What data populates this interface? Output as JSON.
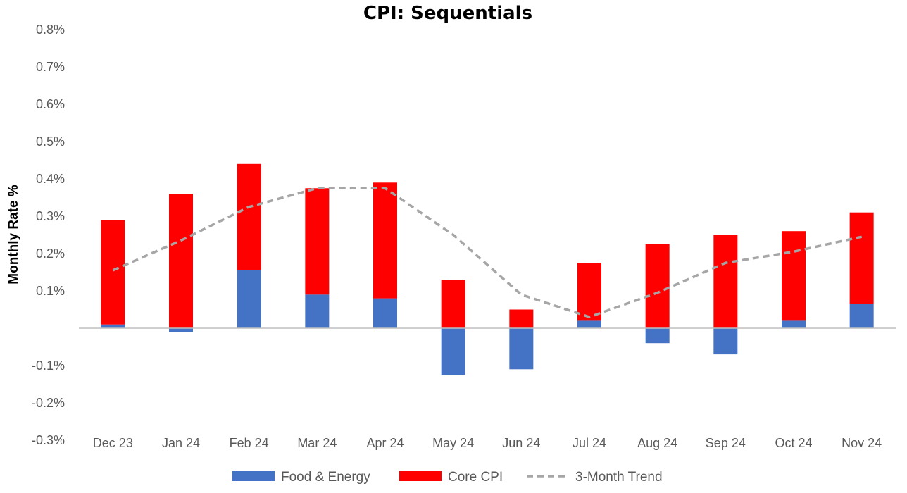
{
  "chart_data": {
    "type": "bar",
    "stacked": true,
    "title": "CPI: Sequentials",
    "xlabel": "",
    "ylabel": "Monthly Rate %",
    "ylim": [
      -0.3,
      0.8
    ],
    "yticks": [
      -0.3,
      -0.2,
      -0.1,
      0.1,
      0.2,
      0.3,
      0.4,
      0.5,
      0.6,
      0.7,
      0.8
    ],
    "ytick_labels": [
      "-0.3%",
      "-0.2%",
      "-0.1%",
      "0.1%",
      "0.2%",
      "0.3%",
      "0.4%",
      "0.5%",
      "0.6%",
      "0.7%",
      "0.8%"
    ],
    "categories": [
      "Dec 23",
      "Jan 24",
      "Feb 24",
      "Mar 24",
      "Apr 24",
      "May 24",
      "Jun 24",
      "Jul 24",
      "Aug 24",
      "Sep 24",
      "Oct 24",
      "Nov 24"
    ],
    "series": [
      {
        "name": "Food & Energy",
        "kind": "bar",
        "color": "#4472C4",
        "values": [
          0.01,
          -0.01,
          0.155,
          0.09,
          0.08,
          -0.125,
          -0.11,
          0.02,
          -0.04,
          -0.07,
          0.02,
          0.065
        ]
      },
      {
        "name": "Core CPI",
        "kind": "bar",
        "color": "#FF0000",
        "values": [
          0.28,
          0.36,
          0.285,
          0.285,
          0.31,
          0.13,
          0.05,
          0.155,
          0.225,
          0.25,
          0.24,
          0.245
        ]
      },
      {
        "name": "3-Month Trend",
        "kind": "line",
        "color": "#A6A6A6",
        "dashed": true,
        "values": [
          0.155,
          0.235,
          0.325,
          0.375,
          0.375,
          0.25,
          0.09,
          0.03,
          0.095,
          0.175,
          0.205,
          0.245
        ]
      }
    ],
    "grid": false,
    "legend_position": "bottom"
  }
}
